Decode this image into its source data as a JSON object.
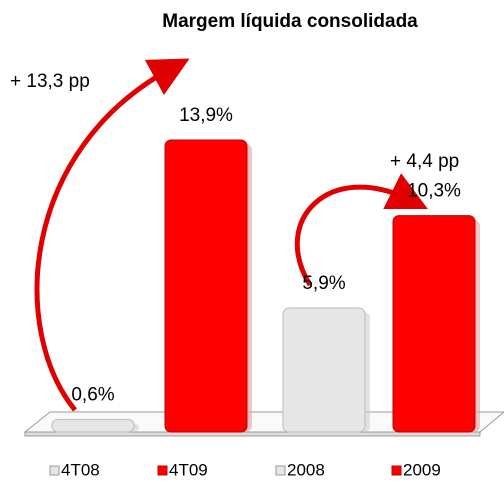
{
  "chart_data": {
    "type": "bar",
    "title": "Margem líquida consolidada",
    "categories": [
      "4T08",
      "4T09",
      "2008",
      "2009"
    ],
    "values": [
      0.6,
      13.9,
      5.9,
      10.3
    ],
    "value_labels": [
      "0,6%",
      "13,9%",
      "5,9%",
      "10,3%"
    ],
    "colors": [
      "#e6e6e6",
      "#ff0000",
      "#e6e6e6",
      "#ff0000"
    ],
    "annotations": [
      "+ 13,3 pp",
      "+ 4,4 pp"
    ]
  }
}
